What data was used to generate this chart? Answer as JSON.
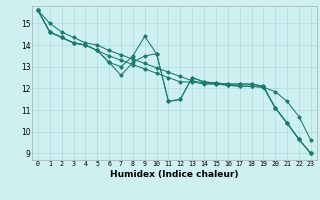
{
  "title": "",
  "xlabel": "Humidex (Indice chaleur)",
  "bg_color": "#cff0f0",
  "grid_color": "#aadddd",
  "line_color": "#1a7a6e",
  "xlim": [
    -0.5,
    23.5
  ],
  "ylim": [
    8.7,
    15.8
  ],
  "yticks": [
    9,
    10,
    11,
    12,
    13,
    14,
    15
  ],
  "xticks": [
    0,
    1,
    2,
    3,
    4,
    5,
    6,
    7,
    8,
    9,
    10,
    11,
    12,
    13,
    14,
    15,
    16,
    17,
    18,
    19,
    20,
    21,
    22,
    23
  ],
  "series1": [
    15.6,
    15.0,
    14.6,
    14.35,
    14.1,
    14.0,
    13.75,
    13.55,
    13.35,
    13.15,
    12.95,
    12.75,
    12.55,
    12.35,
    12.25,
    12.2,
    12.15,
    12.1,
    12.1,
    12.05,
    11.85,
    11.4,
    10.7,
    9.6
  ],
  "series2": [
    15.6,
    14.6,
    14.35,
    14.1,
    14.0,
    13.75,
    13.2,
    13.0,
    13.5,
    14.4,
    13.6,
    11.4,
    11.5,
    12.5,
    12.3,
    12.25,
    12.2,
    12.2,
    12.2,
    12.1,
    11.1,
    10.4,
    9.65,
    9.0
  ],
  "series3": [
    15.6,
    14.6,
    14.35,
    14.1,
    14.0,
    13.75,
    13.2,
    12.6,
    13.2,
    13.5,
    13.6,
    11.4,
    11.5,
    12.5,
    12.3,
    12.25,
    12.2,
    12.2,
    12.2,
    12.1,
    11.1,
    10.4,
    9.65,
    9.0
  ],
  "series4": [
    15.6,
    14.6,
    14.35,
    14.1,
    14.0,
    13.75,
    13.5,
    13.3,
    13.1,
    12.9,
    12.7,
    12.5,
    12.3,
    12.3,
    12.2,
    12.2,
    12.15,
    12.1,
    12.1,
    12.05,
    11.1,
    10.4,
    9.65,
    9.0
  ]
}
